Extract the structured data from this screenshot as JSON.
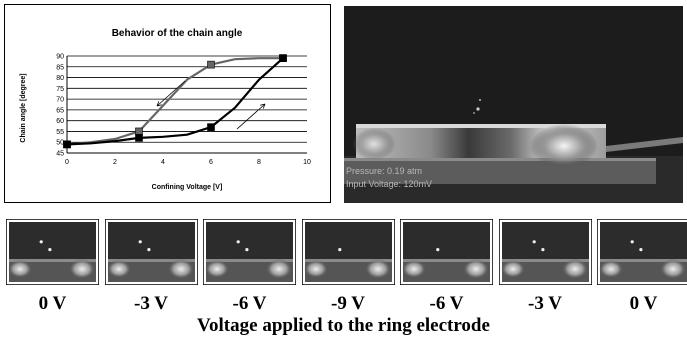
{
  "chart_data": {
    "type": "line",
    "title": "Behavior of the chain angle",
    "xlabel": "Confining Voltage [V]",
    "ylabel": "Chain angle [degree]",
    "xlim": [
      0,
      10
    ],
    "ylim": [
      45,
      90
    ],
    "xticks": [
      0,
      2,
      4,
      6,
      8,
      10
    ],
    "yticks": [
      45,
      50,
      55,
      60,
      65,
      70,
      75,
      80,
      85,
      90
    ],
    "grid": "horizontal",
    "series": [
      {
        "name": "",
        "color": "#666666",
        "x": [
          0,
          3,
          6,
          9
        ],
        "values": [
          49,
          55,
          86,
          89
        ],
        "curve": [
          [
            0,
            49
          ],
          [
            1,
            50
          ],
          [
            2,
            51.5
          ],
          [
            3,
            55
          ],
          [
            4,
            67
          ],
          [
            5,
            79
          ],
          [
            6,
            86
          ],
          [
            7,
            88.5
          ],
          [
            8,
            89
          ],
          [
            9,
            89
          ]
        ],
        "arrow": "decreasing voltage"
      },
      {
        "name": "",
        "color": "#000000",
        "x": [
          0,
          3,
          6,
          9
        ],
        "values": [
          49,
          52,
          57,
          89
        ],
        "curve": [
          [
            0,
            49
          ],
          [
            1,
            49.5
          ],
          [
            2,
            50.5
          ],
          [
            3,
            52
          ],
          [
            4,
            52.5
          ],
          [
            5,
            53.5
          ],
          [
            6,
            57
          ],
          [
            7,
            66
          ],
          [
            8,
            79
          ],
          [
            9,
            89
          ]
        ],
        "arrow": "increasing voltage"
      }
    ]
  },
  "photo": {
    "overlay_line1": "Pressure: 0.19 atm",
    "overlay_line2": "Input Voltage: 120mV"
  },
  "frames": [
    {
      "label": "0 V",
      "dots": [
        [
          0.37,
          0.33
        ],
        [
          0.47,
          0.46
        ]
      ]
    },
    {
      "label": "-3 V",
      "dots": [
        [
          0.37,
          0.33
        ],
        [
          0.47,
          0.46
        ]
      ]
    },
    {
      "label": "-6 V",
      "dots": [
        [
          0.37,
          0.33
        ],
        [
          0.47,
          0.46
        ]
      ]
    },
    {
      "label": "-9 V",
      "dots": [
        [
          0.4,
          0.46
        ]
      ]
    },
    {
      "label": "-6 V",
      "dots": [
        [
          0.4,
          0.46
        ]
      ]
    },
    {
      "label": "-3 V",
      "dots": [
        [
          0.37,
          0.33
        ],
        [
          0.47,
          0.46
        ]
      ]
    },
    {
      "label": "0 V",
      "dots": [
        [
          0.37,
          0.33
        ],
        [
          0.47,
          0.46
        ]
      ]
    }
  ],
  "caption": "Voltage applied to the ring electrode"
}
